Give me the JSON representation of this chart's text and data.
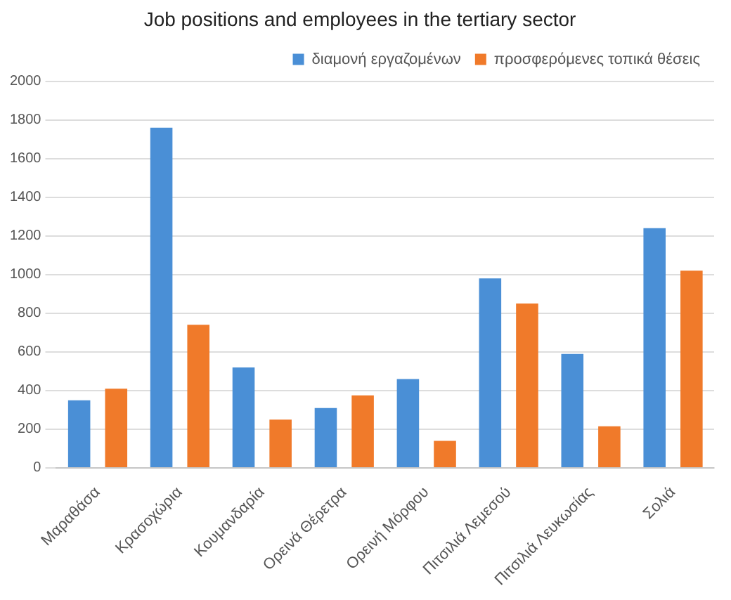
{
  "chart_data": {
    "type": "bar",
    "title": "Job positions and employees in the tertiary sector",
    "categories": [
      "Μαραθάσα",
      "Κρασοχώρια",
      "Κουμανδαρία",
      "Ορεινά Θέρετρα",
      "Ορεινή Μόρφου",
      "Πιτσιλιά Λεμεσού",
      "Πιτσιλιά Λευκωσίας",
      "Σολιά"
    ],
    "series": [
      {
        "name": "διαμονή εργαζομένων",
        "color": "#4a8fd6",
        "values": [
          350,
          1760,
          520,
          310,
          460,
          980,
          590,
          1240
        ]
      },
      {
        "name": "προσφερόμενες τοπικά θέσεις",
        "color": "#f07a2a",
        "values": [
          410,
          740,
          250,
          375,
          140,
          850,
          215,
          1020
        ]
      }
    ],
    "ylim": [
      0,
      2000
    ],
    "yticks": [
      0,
      200,
      400,
      600,
      800,
      1000,
      1200,
      1400,
      1600,
      1800,
      2000
    ],
    "grid": "y",
    "legend": "top right"
  }
}
